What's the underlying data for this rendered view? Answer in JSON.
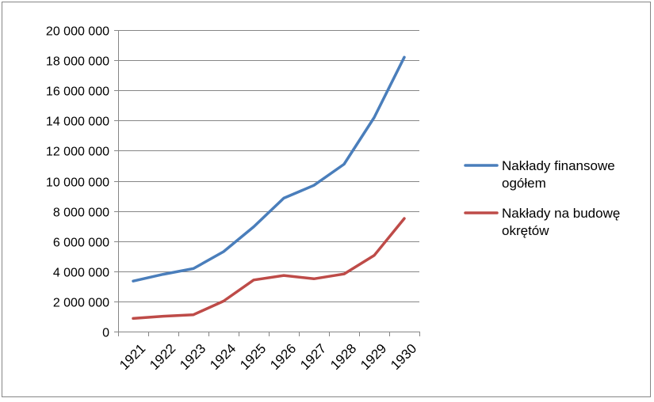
{
  "chart_data": {
    "type": "line",
    "title": "",
    "xlabel": "",
    "ylabel": "",
    "categories": [
      "1921",
      "1922",
      "1923",
      "1924",
      "1925",
      "1926",
      "1927",
      "1928",
      "1929",
      "1930"
    ],
    "ylim": [
      0,
      20000000
    ],
    "yticks": [
      0,
      2000000,
      4000000,
      6000000,
      8000000,
      10000000,
      12000000,
      14000000,
      16000000,
      18000000,
      20000000
    ],
    "ytick_labels": [
      "0",
      "2 000 000",
      "4 000 000",
      "6 000 000",
      "8 000 000",
      "10 000 000",
      "12 000 000",
      "14 000 000",
      "16 000 000",
      "18 000 000",
      "20 000 000"
    ],
    "grid": true,
    "legend_position": "right",
    "series": [
      {
        "name_lines": [
          "Nakłady finansowe",
          "ogółem"
        ],
        "color": "#4a7ebb",
        "values": [
          3350000,
          3800000,
          4180000,
          5300000,
          6950000,
          8850000,
          9700000,
          11100000,
          14200000,
          18200000
        ]
      },
      {
        "name_lines": [
          "Nakłady na budowę",
          "okrętów"
        ],
        "color": "#be4b48",
        "values": [
          870000,
          1020000,
          1120000,
          2020000,
          3420000,
          3720000,
          3500000,
          3820000,
          5050000,
          7500000
        ]
      }
    ]
  }
}
